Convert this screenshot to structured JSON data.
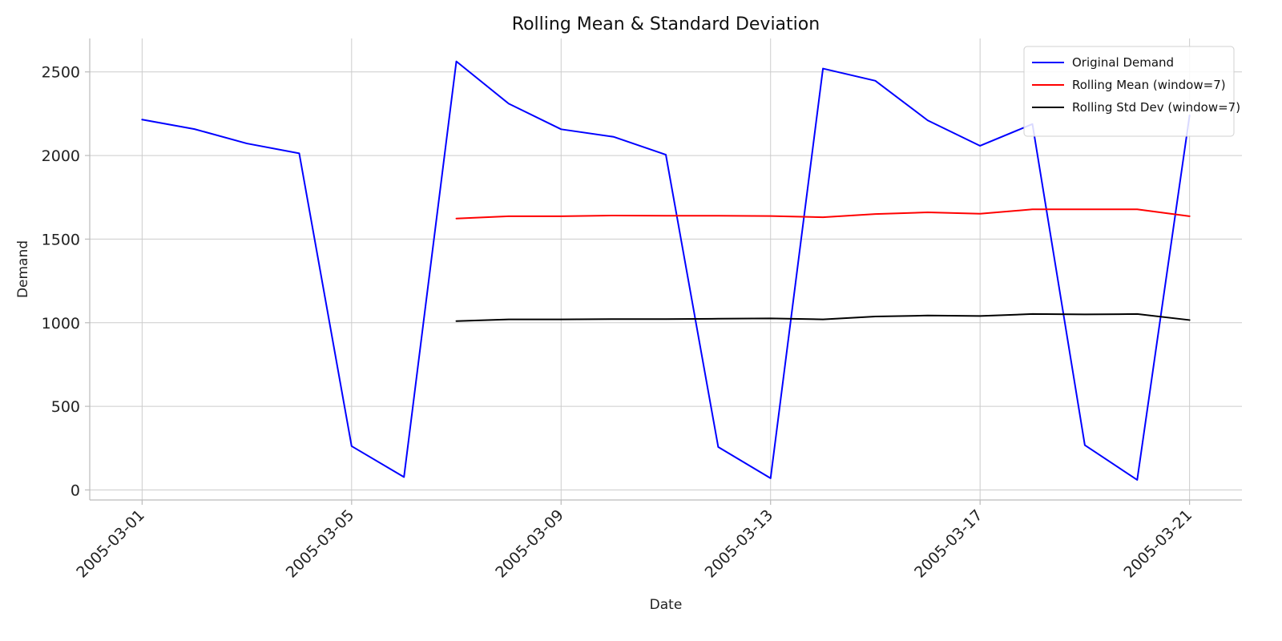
{
  "chart_data": {
    "type": "line",
    "title": "Rolling Mean & Standard Deviation",
    "xlabel": "Date",
    "ylabel": "Demand",
    "x_dates": [
      "2005-03-01",
      "2005-03-02",
      "2005-03-03",
      "2005-03-04",
      "2005-03-05",
      "2005-03-06",
      "2005-03-07",
      "2005-03-08",
      "2005-03-09",
      "2005-03-10",
      "2005-03-11",
      "2005-03-12",
      "2005-03-13",
      "2005-03-14",
      "2005-03-15",
      "2005-03-16",
      "2005-03-17",
      "2005-03-18",
      "2005-03-19",
      "2005-03-20",
      "2005-03-21"
    ],
    "x_tick_labels": [
      "2005-03-01",
      "2005-03-05",
      "2005-03-09",
      "2005-03-13",
      "2005-03-17",
      "2005-03-21"
    ],
    "y_ticks": [
      0,
      500,
      1000,
      1500,
      2000,
      2500
    ],
    "ylim": [
      -60,
      2700
    ],
    "xlim": [
      "2005-02-28",
      "2005-03-22"
    ],
    "grid": true,
    "legend_position": "top-right",
    "series": [
      {
        "name": "Original Demand",
        "color": "#0000ff",
        "values": [
          2215,
          2158,
          2072,
          2013,
          262,
          77,
          2563,
          2310,
          2157,
          2112,
          2005,
          257,
          70,
          2520,
          2447,
          2210,
          2058,
          2188,
          268,
          60,
          2240
        ]
      },
      {
        "name": "Rolling Mean (window=7)",
        "color": "#ff0000",
        "values": [
          null,
          null,
          null,
          null,
          null,
          null,
          1623,
          1637,
          1637,
          1641,
          1640,
          1640,
          1638,
          1631,
          1650,
          1660,
          1652,
          1678,
          1678,
          1678,
          1637
        ]
      },
      {
        "name": "Rolling Std Dev (window=7)",
        "color": "#000000",
        "values": [
          null,
          null,
          null,
          null,
          null,
          null,
          1010,
          1020,
          1020,
          1022,
          1022,
          1024,
          1026,
          1020,
          1037,
          1043,
          1040,
          1052,
          1050,
          1052,
          1016
        ]
      }
    ]
  }
}
